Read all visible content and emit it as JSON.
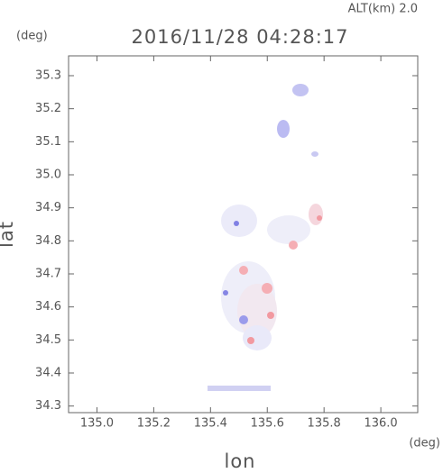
{
  "chart_data": {
    "type": "map",
    "title": "2016/11/28 04:28:17",
    "subtitle": "ALT(km) 2.0",
    "x_label": "lon",
    "y_label": "lat",
    "x_unit": "(deg)",
    "y_unit": "(deg)",
    "xlim": [
      134.9,
      136.13
    ],
    "ylim": [
      34.28,
      35.36
    ],
    "xticks": [
      {
        "value": 135.0,
        "label": "135.0"
      },
      135.2,
      135.4,
      135.6,
      135.8,
      {
        "value": 136.0,
        "label": "136.0"
      }
    ],
    "yticks": [
      34.3,
      34.4,
      34.5,
      34.6,
      34.7,
      34.8,
      34.9,
      {
        "value": 35.0,
        "label": "35.0"
      },
      35.1,
      35.2,
      35.3
    ]
  }
}
